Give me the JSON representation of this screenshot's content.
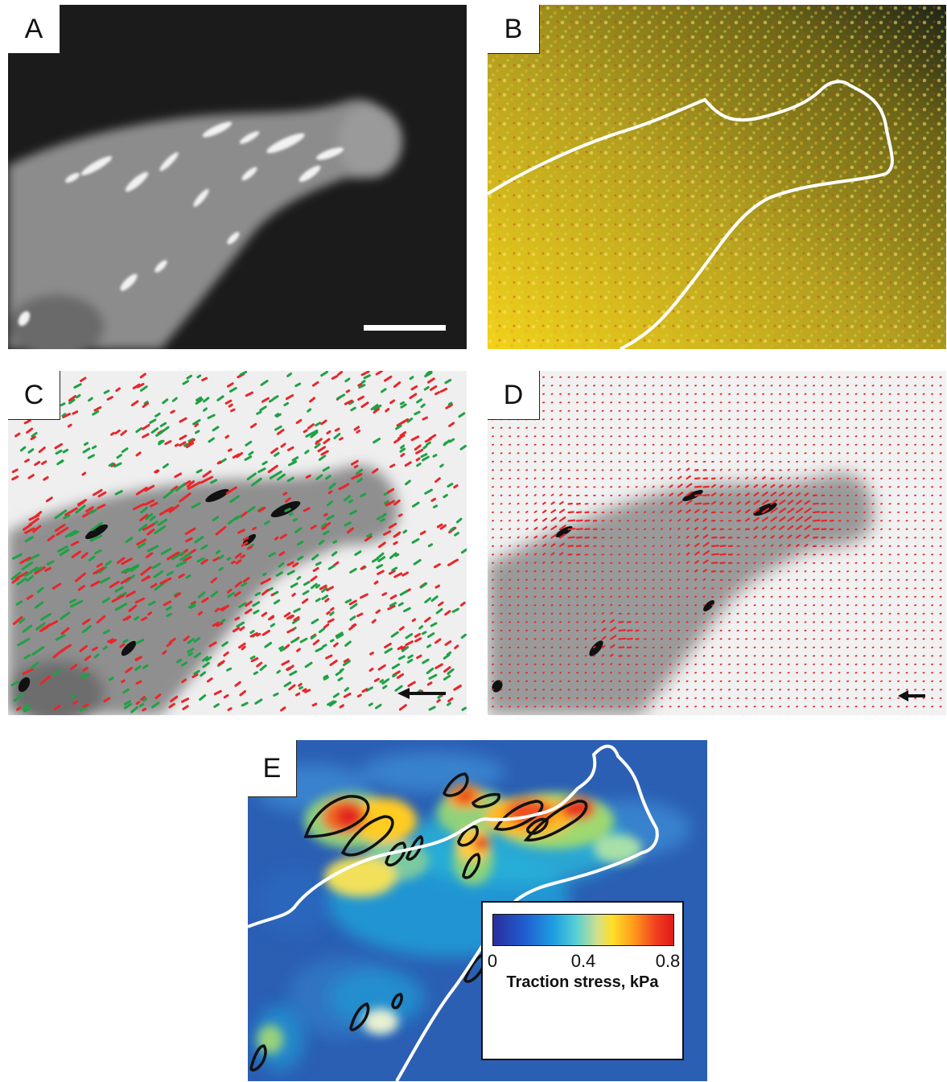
{
  "panels": {
    "a": {
      "label": "A"
    },
    "b": {
      "label": "B"
    },
    "c": {
      "label": "C"
    },
    "d": {
      "label": "D"
    },
    "e": {
      "label": "E"
    }
  },
  "colorbar": {
    "tick_min": "0",
    "tick_mid": "0.4",
    "tick_max": "0.8",
    "title": "Traction stress, kPa"
  },
  "colors": {
    "bead_red": "#e8262a",
    "bead_green": "#20a046",
    "outline_white": "#ffffff",
    "arrow_red": "#e8262a",
    "scalebar": "#ffffff"
  }
}
